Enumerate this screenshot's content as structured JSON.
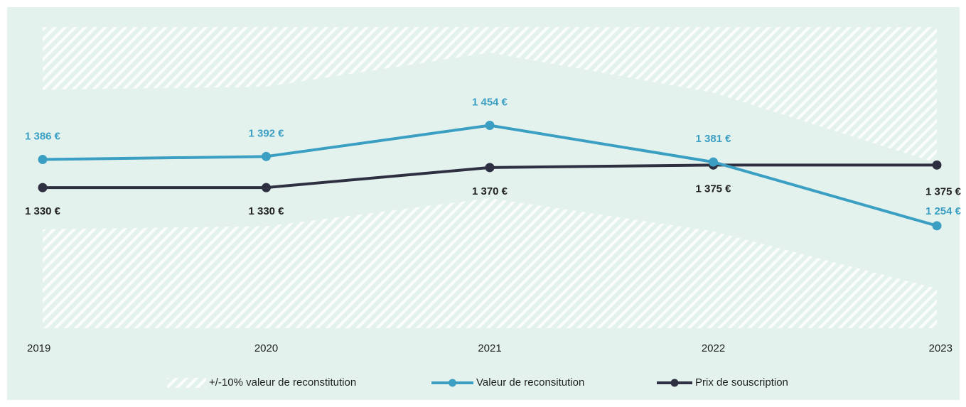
{
  "chart_data": {
    "type": "line",
    "categories": [
      "2019",
      "2020",
      "2021",
      "2022",
      "2023"
    ],
    "ylim": [
      1050,
      1650
    ],
    "band": {
      "name": "+/-10% valeur de reconstitution",
      "upper": [
        1525,
        1531,
        1599,
        1519,
        1379
      ],
      "lower": [
        1247,
        1253,
        1309,
        1243,
        1129
      ]
    },
    "series": [
      {
        "name": "Valeur de reconsitution",
        "color": "#3a9fc3",
        "values": [
          1386,
          1392,
          1454,
          1381,
          1254
        ],
        "value_labels": [
          "1 386 €",
          "1 392 €",
          "1 454 €",
          "1 381 €",
          "1 254 €"
        ]
      },
      {
        "name": "Prix de souscription",
        "color": "#2e2f40",
        "values": [
          1330,
          1330,
          1370,
          1375,
          1375
        ],
        "value_labels": [
          "1 330 €",
          "1 330 €",
          "1 370 €",
          "1 375 €",
          "1 375 €"
        ]
      }
    ]
  }
}
